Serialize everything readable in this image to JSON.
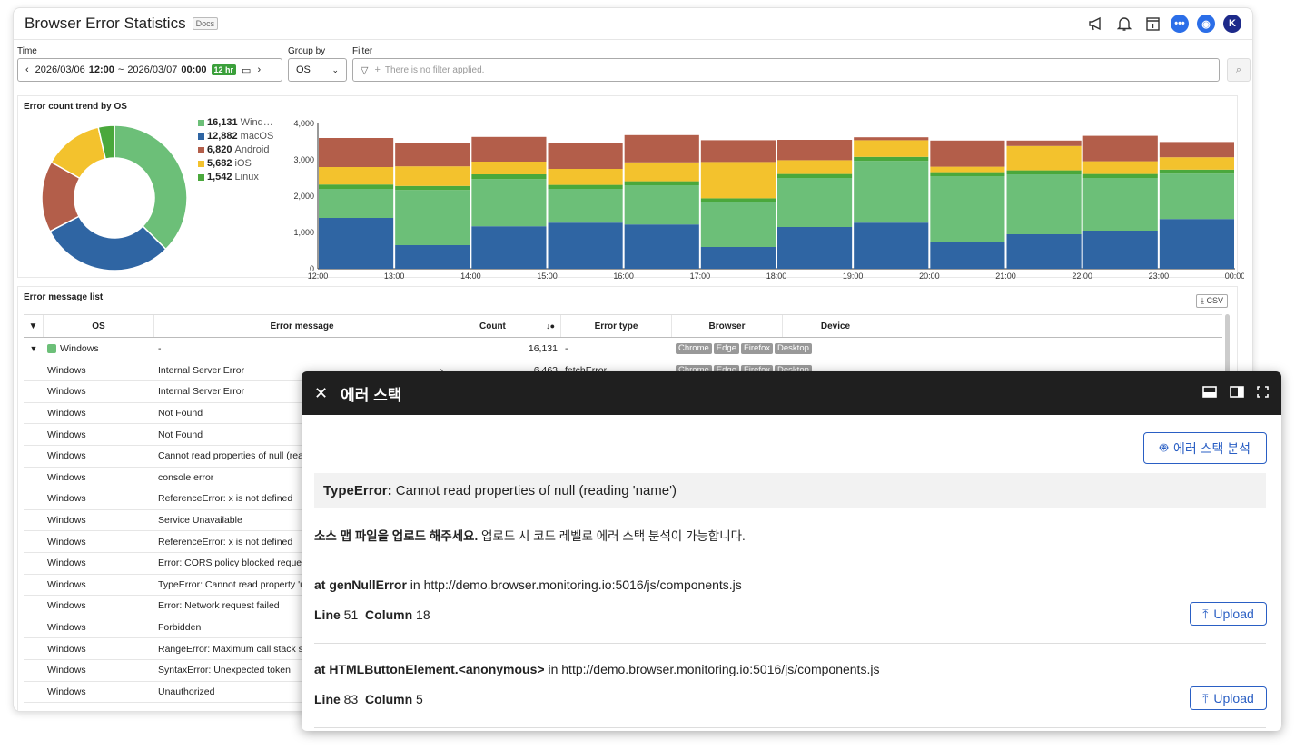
{
  "header": {
    "title": "Browser Error Statistics",
    "docs": "Docs",
    "avatar": "K"
  },
  "filters": {
    "time_label": "Time",
    "date_from": "2026/03/06",
    "time_from": "12:00",
    "sep": "~",
    "date_to": "2026/03/07",
    "time_to": "00:00",
    "range_badge": "12 hr",
    "group_label": "Group by",
    "group_value": "OS",
    "filter_label": "Filter",
    "filter_placeholder": "There is no filter applied."
  },
  "trend": {
    "title": "Error count trend by OS",
    "legend": [
      {
        "count": "16,131",
        "name": "Wind…",
        "color": "#6cbf78"
      },
      {
        "count": "12,882",
        "name": "macOS",
        "color": "#2f65a3"
      },
      {
        "count": "6,820",
        "name": "Android",
        "color": "#b35e4a"
      },
      {
        "count": "5,682",
        "name": "iOS",
        "color": "#f3c22d"
      },
      {
        "count": "1,542",
        "name": "Linux",
        "color": "#4aa83c"
      }
    ]
  },
  "chart_data": {
    "type": "bar",
    "stacked": true,
    "categories": [
      "12:00",
      "13:00",
      "14:00",
      "15:00",
      "16:00",
      "17:00",
      "18:00",
      "19:00",
      "20:00",
      "21:00",
      "22:00",
      "23:00"
    ],
    "x_tick_labels": [
      "12:00",
      "13:00",
      "14:00",
      "15:00",
      "16:00",
      "17:00",
      "18:00",
      "19:00",
      "20:00",
      "21:00",
      "22:00",
      "23:00",
      "00:00"
    ],
    "ylim": [
      0,
      4000
    ],
    "yticks": [
      "0",
      "1,000",
      "2,000",
      "3,000",
      "4,000"
    ],
    "series": [
      {
        "name": "macOS",
        "color": "#2f65a3",
        "values": [
          1400,
          650,
          1170,
          1270,
          1220,
          600,
          1150,
          1270,
          750,
          950,
          1050,
          1370
        ]
      },
      {
        "name": "Windows",
        "color": "#6cbf78",
        "values": [
          800,
          1520,
          1300,
          930,
          1080,
          1230,
          1350,
          1700,
          1800,
          1650,
          1450,
          1250
        ]
      },
      {
        "name": "Linux",
        "color": "#4aa83c",
        "values": [
          120,
          110,
          130,
          110,
          110,
          110,
          110,
          110,
          110,
          110,
          110,
          110
        ]
      },
      {
        "name": "iOS",
        "color": "#f3c22d",
        "values": [
          480,
          540,
          350,
          440,
          520,
          1000,
          380,
          460,
          150,
          670,
          350,
          340
        ]
      },
      {
        "name": "Android",
        "color": "#b35e4a",
        "values": [
          800,
          650,
          680,
          720,
          750,
          600,
          560,
          80,
          720,
          150,
          700,
          420
        ]
      }
    ],
    "donut": [
      {
        "name": "Windows",
        "value": 16131,
        "color": "#6cbf78"
      },
      {
        "name": "macOS",
        "value": 12882,
        "color": "#2f65a3"
      },
      {
        "name": "Android",
        "value": 6820,
        "color": "#b35e4a"
      },
      {
        "name": "iOS",
        "value": 5682,
        "color": "#f3c22d"
      },
      {
        "name": "Linux",
        "value": 1542,
        "color": "#4aa83c"
      }
    ]
  },
  "table": {
    "title": "Error message list",
    "csv": "CSV",
    "columns": [
      "OS",
      "Error message",
      "Count",
      "Error type",
      "Browser",
      "Device"
    ],
    "group": {
      "os": "Windows",
      "msg": "-",
      "count": "16,131",
      "type": "-",
      "tags": [
        "Chrome",
        "Edge",
        "Firefox",
        "Desktop"
      ]
    },
    "rows": [
      {
        "os": "Windows",
        "msg": "Internal Server Error",
        "count": "6,463",
        "type": "fetchError"
      },
      {
        "os": "Windows",
        "msg": "Internal Server Error"
      },
      {
        "os": "Windows",
        "msg": "Not Found"
      },
      {
        "os": "Windows",
        "msg": "Not Found"
      },
      {
        "os": "Windows",
        "msg": "Cannot read properties of null (rea"
      },
      {
        "os": "Windows",
        "msg": "console error"
      },
      {
        "os": "Windows",
        "msg": "ReferenceError: x is not defined"
      },
      {
        "os": "Windows",
        "msg": "Service Unavailable"
      },
      {
        "os": "Windows",
        "msg": "ReferenceError: x is not defined"
      },
      {
        "os": "Windows",
        "msg": "Error: CORS policy blocked reques"
      },
      {
        "os": "Windows",
        "msg": "TypeError: Cannot read property 'u"
      },
      {
        "os": "Windows",
        "msg": "Error: Network request failed"
      },
      {
        "os": "Windows",
        "msg": "Forbidden"
      },
      {
        "os": "Windows",
        "msg": "RangeError: Maximum call stack s"
      },
      {
        "os": "Windows",
        "msg": "SyntaxError: Unexpected token"
      },
      {
        "os": "Windows",
        "msg": "Unauthorized"
      }
    ]
  },
  "drawer": {
    "title": "에러 스택",
    "analyze_btn": "에러 스택 분석",
    "error_name": "TypeError:",
    "error_msg": "Cannot read properties of null (reading 'name')",
    "notice_bold": "소스 맵 파일을 업로드 해주세요.",
    "notice_rest": "업로드 시 코드 레벨로 에러 스택 분석이 가능합니다.",
    "frames": [
      {
        "fn": "at genNullError",
        "in": "in",
        "url": "http://demo.browser.monitoring.io:5016/js/components.js",
        "line_label": "Line",
        "line": "51",
        "col_label": "Column",
        "col": "18",
        "upload": "Upload"
      },
      {
        "fn": "at HTMLButtonElement.<anonymous>",
        "in": "in",
        "url": "http://demo.browser.monitoring.io:5016/js/components.js",
        "line_label": "Line",
        "line": "83",
        "col_label": "Column",
        "col": "5",
        "upload": "Upload"
      }
    ]
  }
}
